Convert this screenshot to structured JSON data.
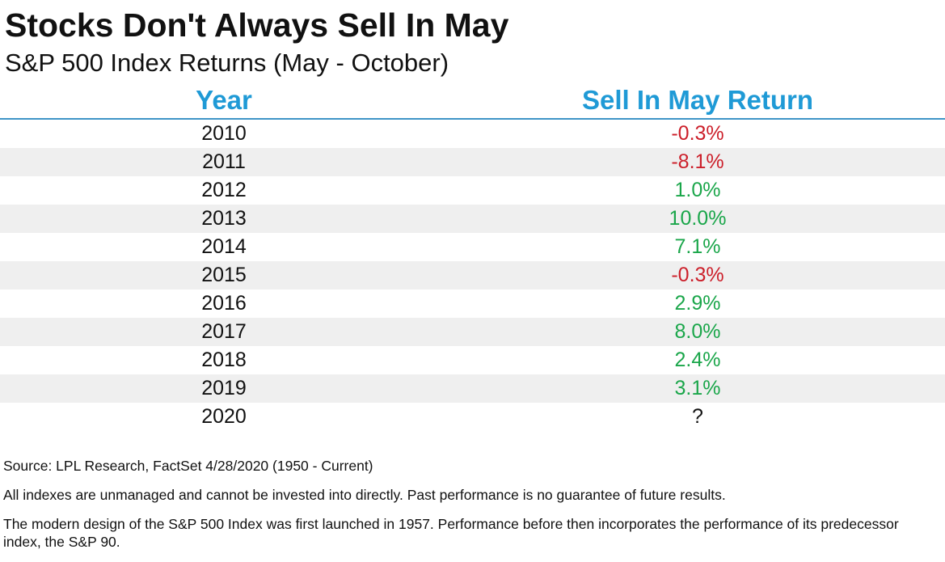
{
  "title": "Stocks Don't Always Sell In May",
  "subtitle": "S&P 500 Index Returns (May - October)",
  "colors": {
    "header": "#1f9ad6",
    "header_rule": "#3f95c7",
    "positive": "#1aa64a",
    "negative": "#cc1f2a",
    "row_shade": "#efefef"
  },
  "chart_data": {
    "type": "table",
    "columns": [
      "Year",
      "Sell In May Return"
    ],
    "rows": [
      {
        "year": "2010",
        "return": "-0.3%",
        "value": -0.3
      },
      {
        "year": "2011",
        "return": "-8.1%",
        "value": -8.1
      },
      {
        "year": "2012",
        "return": "1.0%",
        "value": 1.0
      },
      {
        "year": "2013",
        "return": "10.0%",
        "value": 10.0
      },
      {
        "year": "2014",
        "return": "7.1%",
        "value": 7.1
      },
      {
        "year": "2015",
        "return": "-0.3%",
        "value": -0.3
      },
      {
        "year": "2016",
        "return": "2.9%",
        "value": 2.9
      },
      {
        "year": "2017",
        "return": "8.0%",
        "value": 8.0
      },
      {
        "year": "2018",
        "return": "2.4%",
        "value": 2.4
      },
      {
        "year": "2019",
        "return": "3.1%",
        "value": 3.1
      },
      {
        "year": "2020",
        "return": "?",
        "value": null
      }
    ]
  },
  "footnotes": {
    "source": "Source: LPL Research, FactSet 4/28/2020 (1950 - Current)",
    "disclaimer": "All indexes are unmanaged and cannot be invested into directly. Past performance is no guarantee of future results.",
    "history": "The modern design of the S&P 500 Index was first launched in 1957. Performance before then incorporates the performance of its predecessor index, the S&P 90."
  }
}
